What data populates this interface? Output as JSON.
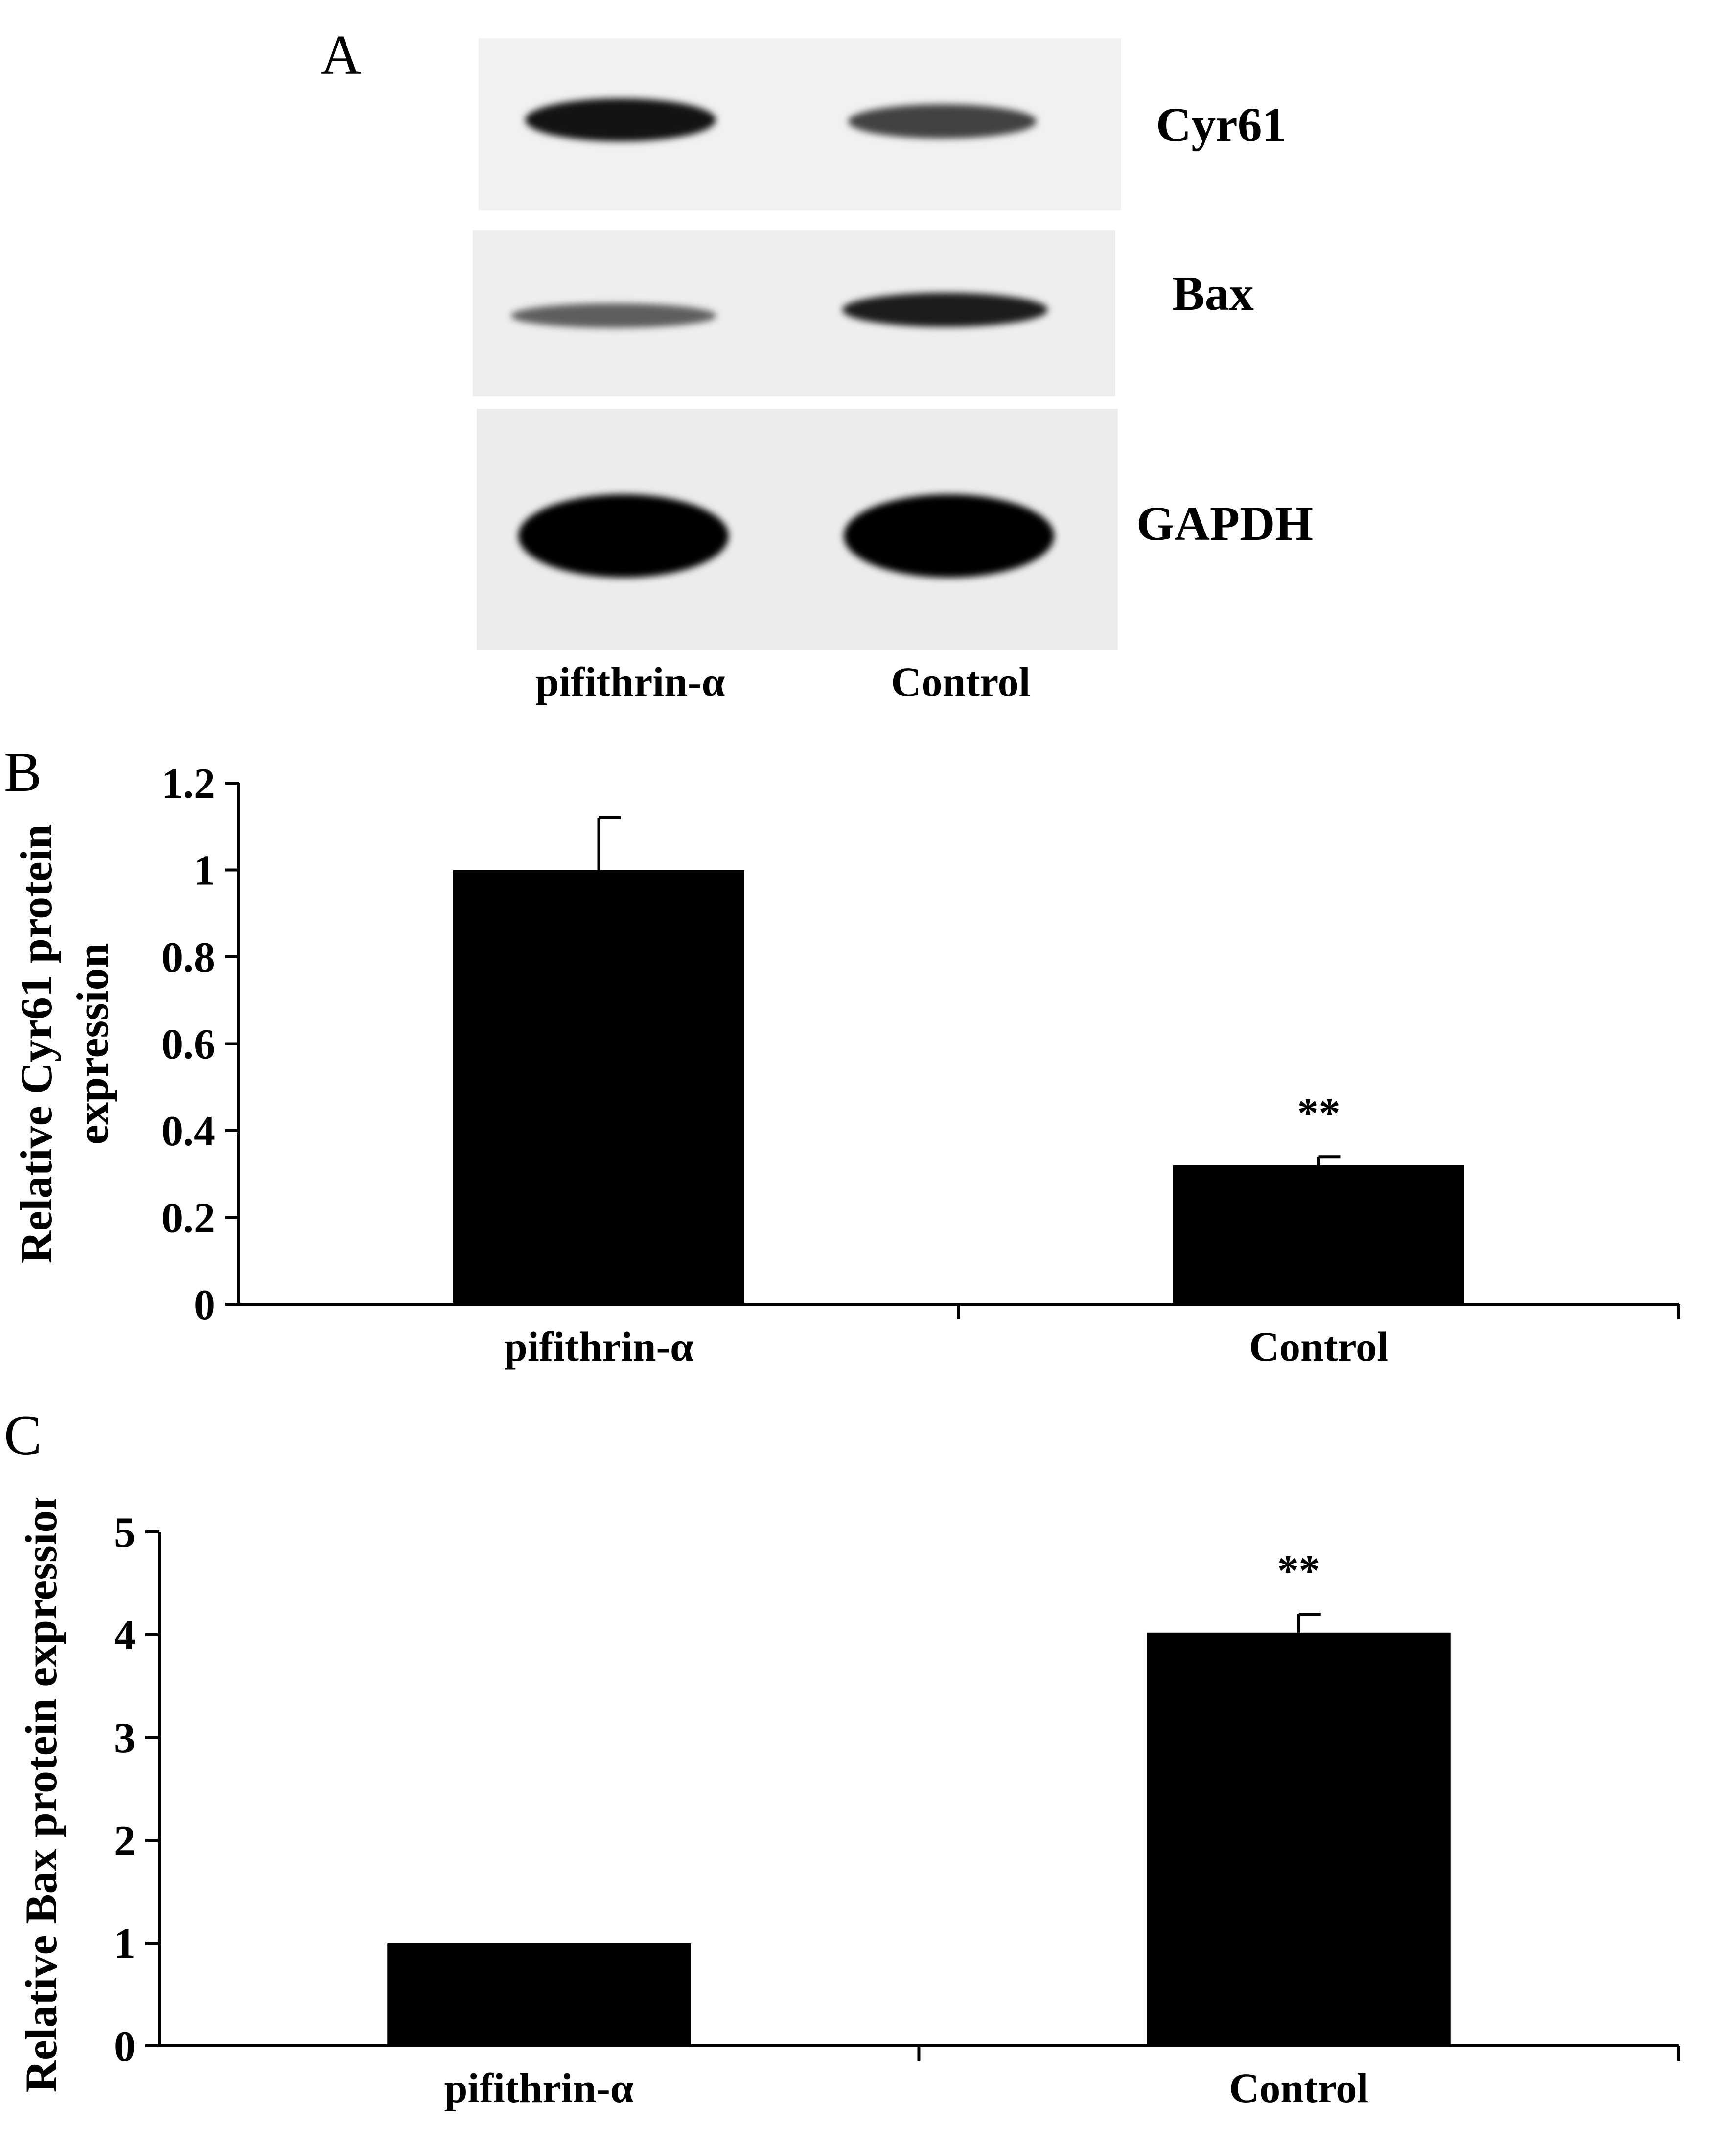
{
  "panels": {
    "a": "A",
    "b": "B",
    "c": "C"
  },
  "western_blot": {
    "rows": [
      {
        "label": "Cyr61",
        "intensities": [
          0.92,
          0.72
        ]
      },
      {
        "label": "Bax",
        "intensities": [
          0.6,
          0.88
        ]
      },
      {
        "label": "GAPDH",
        "intensities": [
          1.0,
          1.0
        ]
      }
    ],
    "lanes": [
      "pifithrin-α",
      "Control"
    ]
  },
  "chart_data": [
    {
      "type": "bar",
      "panel": "B",
      "categories": [
        "pifithrin-α",
        "Control"
      ],
      "values": [
        1.0,
        0.32
      ],
      "errors": [
        0.12,
        0.02
      ],
      "significance": [
        "",
        "**"
      ],
      "ylabel": "Relative Cyr61 protein expression",
      "ylabel_lines": [
        "Relative Cyr61 protein",
        "expression"
      ],
      "ylim": [
        0,
        1.2
      ],
      "yticks": [
        0,
        0.2,
        0.4,
        0.6,
        0.8,
        1,
        1.2
      ],
      "ytick_labels": [
        "0",
        "0.2",
        "0.4",
        "0.6",
        "0.8",
        "1",
        "1.2"
      ],
      "bar_color": "#000000"
    },
    {
      "type": "bar",
      "panel": "C",
      "categories": [
        "pifithrin-α",
        "Control"
      ],
      "values": [
        1.0,
        4.02
      ],
      "errors": [
        0.0,
        0.18
      ],
      "significance": [
        "",
        "**"
      ],
      "ylabel": "Relative Bax protein expression",
      "ylabel_lines": [
        "Relative Bax protein expression"
      ],
      "ylim": [
        0,
        5
      ],
      "yticks": [
        0,
        1,
        2,
        3,
        4,
        5
      ],
      "ytick_labels": [
        "0",
        "1",
        "2",
        "3",
        "4",
        "5"
      ],
      "bar_color": "#000000"
    }
  ]
}
